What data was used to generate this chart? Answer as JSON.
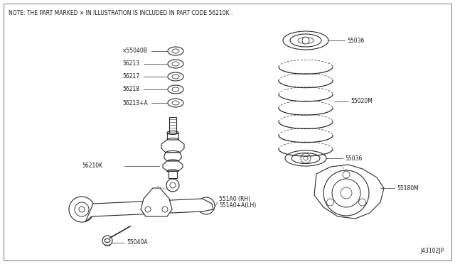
{
  "note_text": "NOTE: THE PART MARKED × IN ILLUSTRATION IS INCLUDED IN PART CODE 56210K .",
  "diagram_id": "J43102JP",
  "bg_color": "#ffffff",
  "line_color": "#2a2a2a",
  "label_color": "#1a1a1a",
  "washer_labels": [
    "×55040B",
    "56213",
    "56217",
    "56218",
    "56213+A"
  ],
  "spring_label": "55020M",
  "shock_label": "56210K",
  "arm_label1": "551A0 (RH)",
  "arm_label2": "551A0+A(LH)",
  "bolt_label": "55040A",
  "mount_label": "55036",
  "knuckle_label": "55180M"
}
